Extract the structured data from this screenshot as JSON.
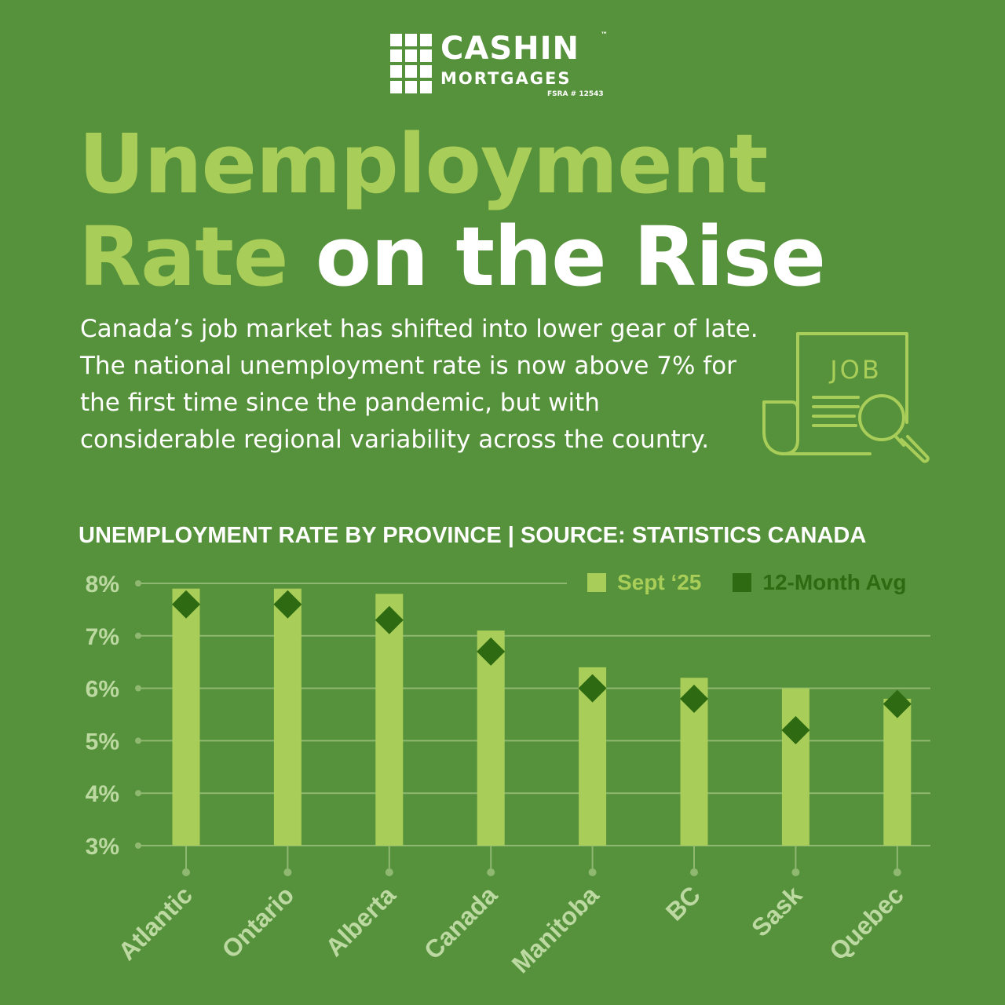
{
  "brand": {
    "name": "CASHIN",
    "trademark": "™",
    "subtitle": "MORTGAGES",
    "license": "FSRA # 12543"
  },
  "title": {
    "accent_line1": "Unemployment",
    "accent_line2": "Rate",
    "white_line2": "on the Rise"
  },
  "intro_text": "Canada’s job market has shifted into lower gear of late. The national unemployment rate is now above 7% for the first time since the pandemic, but with considerable regional variability across the country.",
  "job_icon": {
    "icon": "job-search-document-icon",
    "label": "JOB"
  },
  "colors": {
    "background": "#56913b",
    "bar": "#a9cd59",
    "marker": "#2d6a12",
    "grid": "#8fb870",
    "tick_label": "#bcd9a2"
  },
  "chart_data": {
    "type": "bar",
    "title": "UNEMPLOYMENT RATE BY PROVINCE | SOURCE: STATISTICS CANADA",
    "categories": [
      "Atlantic",
      "Ontario",
      "Alberta",
      "Canada",
      "Manitoba",
      "BC",
      "Sask",
      "Quebec"
    ],
    "series": [
      {
        "name": "Sept ‘25",
        "kind": "bar",
        "values": [
          7.9,
          7.9,
          7.8,
          7.1,
          6.4,
          6.2,
          6.0,
          5.8
        ]
      },
      {
        "name": "12-Month Avg",
        "kind": "marker-diamond",
        "values": [
          7.6,
          7.6,
          7.3,
          6.7,
          6.0,
          5.8,
          5.2,
          5.7
        ]
      }
    ],
    "y_ticks": [
      "3%",
      "4%",
      "5%",
      "6%",
      "7%",
      "8%"
    ],
    "ylim": [
      3,
      8
    ],
    "grid": true,
    "legend_position": "top-right"
  }
}
